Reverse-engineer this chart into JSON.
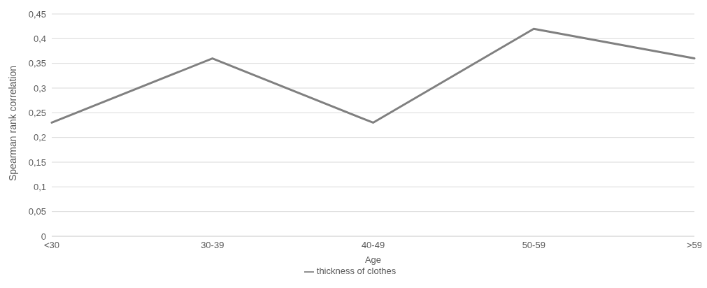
{
  "chart_data": {
    "type": "line",
    "xlabel": "Age",
    "ylabel": "Spearman rank correlation",
    "categories": [
      "<30",
      "30-39",
      "40-49",
      "50-59",
      ">59"
    ],
    "series": [
      {
        "name": "thickness of clothes",
        "color": "#808080",
        "values": [
          0.23,
          0.36,
          0.23,
          0.42,
          0.36
        ]
      }
    ],
    "ylim": [
      0,
      0.45
    ],
    "yticks": [
      {
        "value": 0,
        "label": "0"
      },
      {
        "value": 0.05,
        "label": "0,05"
      },
      {
        "value": 0.1,
        "label": "0,1"
      },
      {
        "value": 0.15,
        "label": "0,15"
      },
      {
        "value": 0.2,
        "label": "0,2"
      },
      {
        "value": 0.25,
        "label": "0,25"
      },
      {
        "value": 0.3,
        "label": "0,3"
      },
      {
        "value": 0.35,
        "label": "0,35"
      },
      {
        "value": 0.4,
        "label": "0,4"
      },
      {
        "value": 0.45,
        "label": "0,45"
      }
    ],
    "grid": "y",
    "legend": "bottom",
    "marker": "none",
    "line_style": "solid"
  }
}
